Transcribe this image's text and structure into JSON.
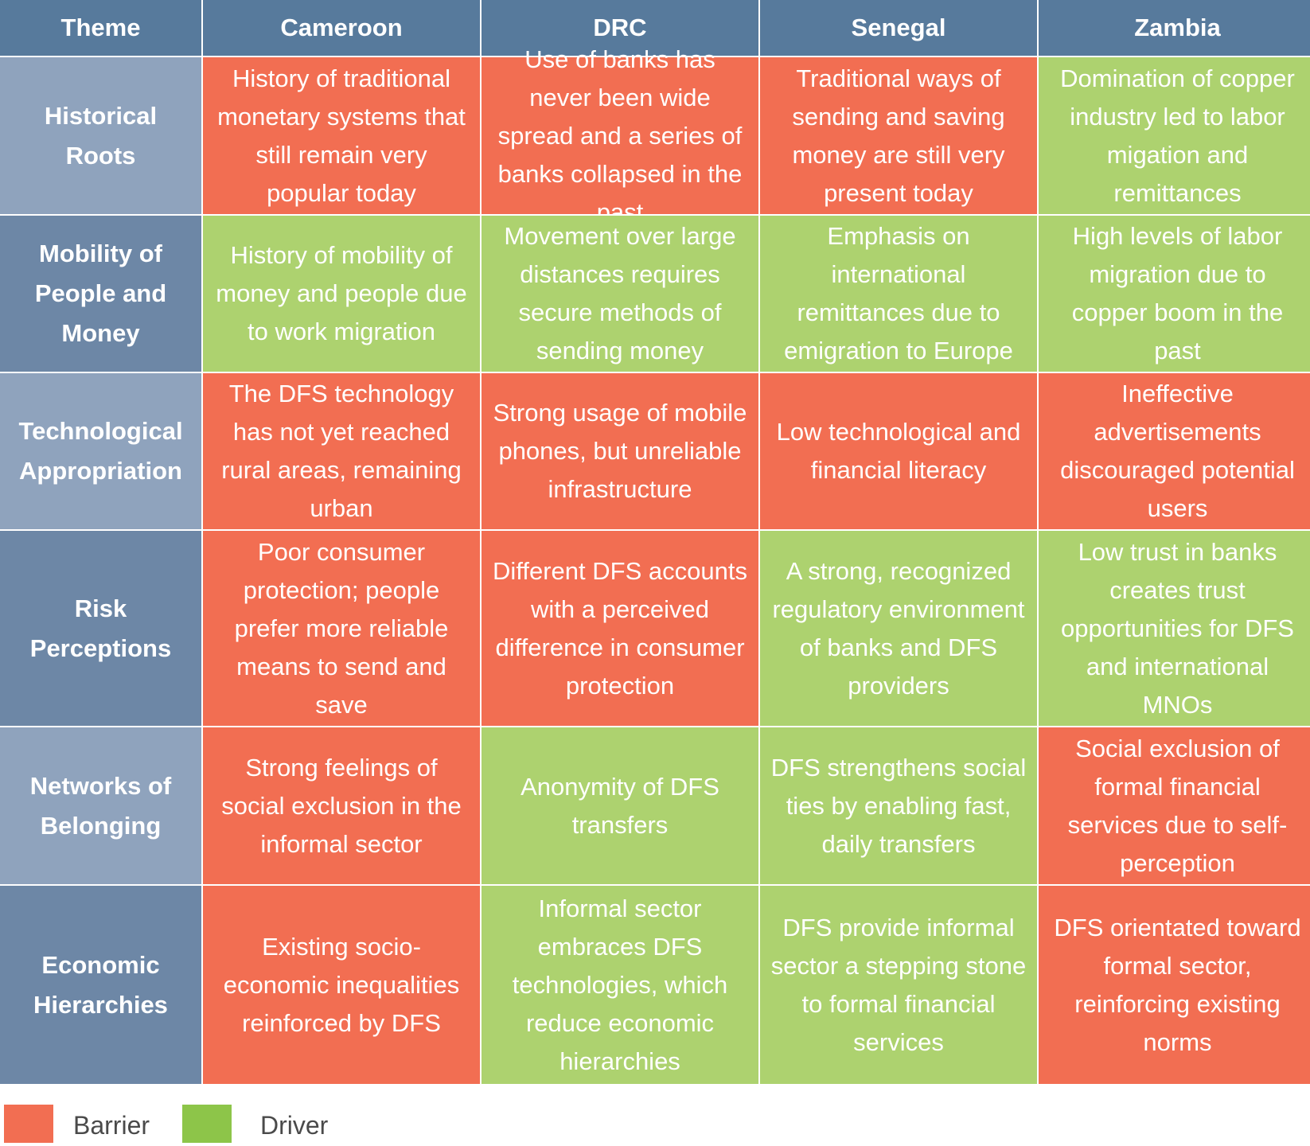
{
  "colors": {
    "header": "#577a9c",
    "theme_light": "#8fa3bd",
    "theme_dark": "#6d87a6",
    "barrier": "#f26e52",
    "driver": "#add26f"
  },
  "table": {
    "headers": [
      "Theme",
      "Cameroon",
      "DRC",
      "Senegal",
      "Zambia"
    ],
    "rows": [
      {
        "theme": "Historical Roots",
        "cells": [
          {
            "text": "History of traditional monetary systems that still remain very popular today",
            "type": "barrier"
          },
          {
            "text": "Use of banks has never been wide spread and a series of banks collapsed in the past",
            "type": "barrier"
          },
          {
            "text": "Traditional ways of sending and saving money are still very present today",
            "type": "barrier"
          },
          {
            "text": "Domination of copper industry led to labor migation and remittances",
            "type": "driver"
          }
        ]
      },
      {
        "theme": "Mobility of People and Money",
        "cells": [
          {
            "text": "History of mobility of money and people due to work migration",
            "type": "driver"
          },
          {
            "text": "Movement over large distances requires secure methods of sending money",
            "type": "driver"
          },
          {
            "text": "Emphasis on international remittances due to emigration to Europe",
            "type": "driver"
          },
          {
            "text": "High levels of labor migration due to copper boom in the past",
            "type": "driver"
          }
        ]
      },
      {
        "theme": "Technological Appropriation",
        "cells": [
          {
            "text": "The DFS technology has not yet reached rural areas, remaining urban",
            "type": "barrier"
          },
          {
            "text": "Strong usage of mobile phones, but unreliable infrastructure",
            "type": "barrier"
          },
          {
            "text": "Low technological and financial literacy",
            "type": "barrier"
          },
          {
            "text": "Ineffective advertisements discouraged potential users",
            "type": "barrier"
          }
        ]
      },
      {
        "theme": "Risk Perceptions",
        "cells": [
          {
            "text": "Poor consumer protection; people prefer more reliable means to send and save",
            "type": "barrier"
          },
          {
            "text": "Different DFS accounts with a perceived difference in consumer protection",
            "type": "barrier"
          },
          {
            "text": "A strong, recognized regulatory environment of banks and DFS providers",
            "type": "driver"
          },
          {
            "text": "Low trust in banks creates trust opportunities for DFS and international MNOs",
            "type": "driver"
          }
        ]
      },
      {
        "theme": "Networks of Belonging",
        "cells": [
          {
            "text": "Strong feelings of social exclusion in the informal sector",
            "type": "barrier"
          },
          {
            "text": "Anonymity of DFS transfers",
            "type": "driver"
          },
          {
            "text": "DFS strengthens social ties by enabling fast, daily transfers",
            "type": "driver"
          },
          {
            "text": "Social exclusion of formal financial services due to self-perception",
            "type": "barrier"
          }
        ]
      },
      {
        "theme": "Economic Hierarchies",
        "cells": [
          {
            "text": "Existing socio-economic inequalities reinforced by DFS",
            "type": "barrier"
          },
          {
            "text": "Informal sector embraces DFS technologies, which reduce economic hierarchies",
            "type": "driver"
          },
          {
            "text": "DFS provide informal sector a stepping stone to formal financial services",
            "type": "driver"
          },
          {
            "text": "DFS orientated toward formal sector, reinforcing existing norms",
            "type": "barrier"
          }
        ]
      }
    ]
  },
  "legend": [
    {
      "label": "Barrier",
      "type": "barrier"
    },
    {
      "label": "Driver",
      "type": "driver"
    }
  ]
}
